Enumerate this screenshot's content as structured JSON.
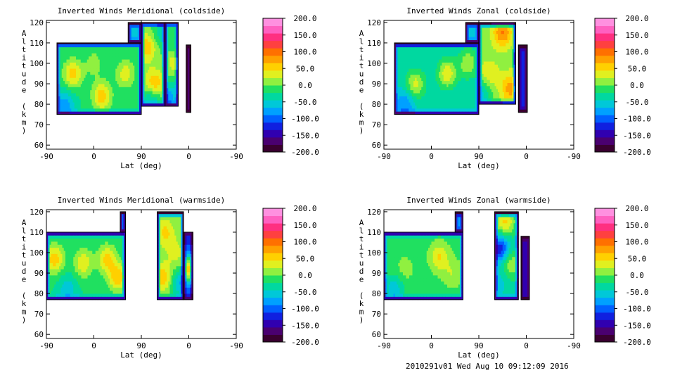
{
  "footer": "2010291v01 Wed Aug 10 09:12:09 2016",
  "colorbar": {
    "ticks": [
      "200.0",
      "150.0",
      "100.0",
      "50.0",
      "0.0",
      "-50.0",
      "-100.0",
      "-150.0",
      "-200.0"
    ],
    "range": [
      -200,
      200
    ],
    "colors": [
      "#3a0030",
      "#4a0070",
      "#3000b0",
      "#1020e0",
      "#0060ff",
      "#00a0ff",
      "#00c8d8",
      "#00d8a0",
      "#20e060",
      "#90f040",
      "#e0f020",
      "#ffd000",
      "#ffa000",
      "#ff7000",
      "#ff4040",
      "#ff3080",
      "#ff60c0",
      "#ff90e0"
    ]
  },
  "chart_data": [
    {
      "type": "contour",
      "title": "Inverted Winds Meridional (coldside)",
      "xlabel": "Lat (deg)",
      "ylabel": "Altitude (km)",
      "x_ticks": [
        "-90",
        "0",
        "90",
        "0",
        "-90"
      ],
      "y_ticks": [
        "60",
        "70",
        "80",
        "90",
        "100",
        "110",
        "120"
      ],
      "ylim": [
        58,
        121
      ],
      "regions": [
        {
          "lat": [
            -70,
            90
          ],
          "alt": [
            75,
            110
          ],
          "base": -20,
          "blobs": [
            {
              "lat": -40,
              "alt": 95,
              "v": 55
            },
            {
              "lat": 15,
              "alt": 84,
              "v": 60
            },
            {
              "lat": 60,
              "alt": 95,
              "v": 35
            },
            {
              "lat": 0,
              "alt": 100,
              "v": 10
            },
            {
              "lat": -55,
              "alt": 80,
              "v": -80
            }
          ]
        },
        {
          "lat": [
            65,
            90
          ],
          "alt": [
            110,
            120
          ],
          "base": -60,
          "blobs": []
        },
        {
          "lat": [
            90,
            135
          ],
          "alt": [
            79,
            120
          ],
          "base": 0,
          "blobs": [
            {
              "lat": 115,
              "alt": 90,
              "v": 70
            },
            {
              "lat": 100,
              "alt": 108,
              "v": 60
            },
            {
              "lat": 130,
              "alt": 115,
              "v": -40
            },
            {
              "lat": 110,
              "alt": 82,
              "v": -60
            }
          ]
        },
        {
          "lat": [
            135,
            160
          ],
          "alt": [
            79,
            120
          ],
          "base": -20,
          "blobs": [
            {
              "lat": 150,
              "alt": 100,
              "v": 30
            },
            {
              "lat": 140,
              "alt": 82,
              "v": -90
            }
          ]
        },
        {
          "lat": [
            175,
            184
          ],
          "alt": [
            76,
            109
          ],
          "base": -150,
          "blobs": []
        }
      ]
    },
    {
      "type": "contour",
      "title": "Inverted Winds Zonal (coldside)",
      "xlabel": "Lat (deg)",
      "ylabel": "Altitude (km)",
      "x_ticks": [
        "-90",
        "0",
        "90",
        "0",
        "-90"
      ],
      "y_ticks": [
        "60",
        "70",
        "80",
        "90",
        "100",
        "110",
        "120"
      ],
      "ylim": [
        58,
        121
      ],
      "regions": [
        {
          "lat": [
            -70,
            90
          ],
          "alt": [
            75,
            110
          ],
          "base": -40,
          "blobs": [
            {
              "lat": -30,
              "alt": 90,
              "v": 30
            },
            {
              "lat": 30,
              "alt": 95,
              "v": 40
            },
            {
              "lat": 70,
              "alt": 100,
              "v": 20
            },
            {
              "lat": -50,
              "alt": 80,
              "v": -90
            }
          ]
        },
        {
          "lat": [
            65,
            90
          ],
          "alt": [
            110,
            120
          ],
          "base": -60,
          "blobs": []
        },
        {
          "lat": [
            90,
            160
          ],
          "alt": [
            80,
            120
          ],
          "base": 10,
          "blobs": [
            {
              "lat": 135,
              "alt": 115,
              "v": 90
            },
            {
              "lat": 150,
              "alt": 88,
              "v": 80
            },
            {
              "lat": 110,
              "alt": 95,
              "v": 40
            },
            {
              "lat": 95,
              "alt": 85,
              "v": -50
            }
          ]
        },
        {
          "lat": [
            165,
            182
          ],
          "alt": [
            76,
            109
          ],
          "base": -130,
          "blobs": []
        }
      ]
    },
    {
      "type": "contour",
      "title": "Inverted Winds Meridional (warmside)",
      "xlabel": "Lat (deg)",
      "ylabel": "Altitude (km)",
      "x_ticks": [
        "-90",
        "0",
        "90",
        "0",
        "-90"
      ],
      "y_ticks": [
        "60",
        "70",
        "80",
        "90",
        "100",
        "110",
        "120"
      ],
      "ylim": [
        58,
        121
      ],
      "regions": [
        {
          "lat": [
            -90,
            60
          ],
          "alt": [
            77,
            110
          ],
          "base": -20,
          "blobs": [
            {
              "lat": -75,
              "alt": 97,
              "v": 60
            },
            {
              "lat": -20,
              "alt": 95,
              "v": 40
            },
            {
              "lat": 25,
              "alt": 97,
              "v": 50
            },
            {
              "lat": 45,
              "alt": 88,
              "v": 60
            },
            {
              "lat": -50,
              "alt": 82,
              "v": -60
            }
          ]
        },
        {
          "lat": [
            50,
            60
          ],
          "alt": [
            110,
            120
          ],
          "base": -60,
          "blobs": []
        },
        {
          "lat": [
            120,
            170
          ],
          "alt": [
            77,
            120
          ],
          "base": 0,
          "blobs": [
            {
              "lat": 135,
              "alt": 110,
              "v": 50
            },
            {
              "lat": 130,
              "alt": 88,
              "v": 60
            },
            {
              "lat": 155,
              "alt": 100,
              "v": 30
            },
            {
              "lat": 165,
              "alt": 85,
              "v": -70
            }
          ]
        },
        {
          "lat": [
            170,
            188
          ],
          "alt": [
            77,
            110
          ],
          "base": -120,
          "blobs": [
            {
              "lat": 180,
              "alt": 92,
              "v": 60
            }
          ]
        }
      ]
    },
    {
      "type": "contour",
      "title": "Inverted Winds Zonal (warmside)",
      "xlabel": "Lat (deg)",
      "ylabel": "Altitude (km)",
      "x_ticks": [
        "-90",
        "0",
        "90",
        "0",
        "-90"
      ],
      "y_ticks": [
        "60",
        "70",
        "80",
        "90",
        "100",
        "110",
        "120"
      ],
      "ylim": [
        58,
        121
      ],
      "regions": [
        {
          "lat": [
            -90,
            60
          ],
          "alt": [
            77,
            110
          ],
          "base": -10,
          "blobs": [
            {
              "lat": 15,
              "alt": 98,
              "v": 45
            },
            {
              "lat": -50,
              "alt": 92,
              "v": 10
            },
            {
              "lat": 40,
              "alt": 90,
              "v": 20
            },
            {
              "lat": -70,
              "alt": 82,
              "v": -60
            }
          ]
        },
        {
          "lat": [
            45,
            60
          ],
          "alt": [
            110,
            120
          ],
          "base": -80,
          "blobs": []
        },
        {
          "lat": [
            120,
            165
          ],
          "alt": [
            77,
            120
          ],
          "base": -30,
          "blobs": [
            {
              "lat": 140,
              "alt": 115,
              "v": 50
            },
            {
              "lat": 130,
              "alt": 102,
              "v": -130
            },
            {
              "lat": 150,
              "alt": 95,
              "v": 20
            },
            {
              "lat": 125,
              "alt": 85,
              "v": -60
            }
          ]
        },
        {
          "lat": [
            170,
            186
          ],
          "alt": [
            77,
            108
          ],
          "base": -140,
          "blobs": []
        }
      ]
    }
  ]
}
